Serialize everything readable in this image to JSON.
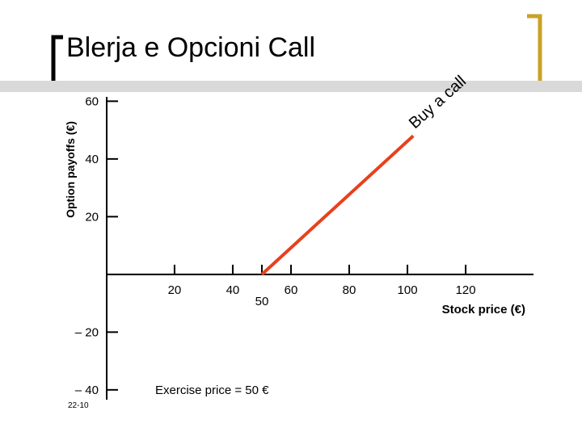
{
  "chart_data": {
    "type": "line",
    "title": "Blerja e Opcioni Call",
    "y_label": "Option payoffs (€)",
    "x_label": "Stock price (€)",
    "annotation": "Exercise price = 50 €",
    "slide_number": "22-10",
    "series": [
      {
        "name": "Buy a call",
        "color": "#e8401c",
        "x": [
          50,
          102
        ],
        "values": [
          0,
          48
        ]
      }
    ],
    "xlim": [
      -3.3,
      143.3
    ],
    "ylim": [
      -43.4,
      61.5
    ],
    "xticks": [
      20,
      40,
      50,
      60,
      80,
      100,
      120
    ],
    "yticks": [
      60,
      40,
      20,
      {
        "value": -20,
        "label": "– 20"
      },
      {
        "value": -40,
        "label": "– 40"
      }
    ]
  }
}
